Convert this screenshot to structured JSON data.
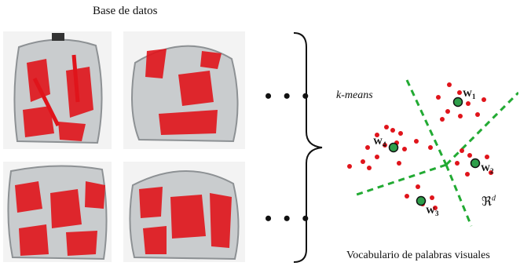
{
  "title": "Base de datos",
  "ellipsis_top": "• • •",
  "ellipsis_bottom": "• • •",
  "method_label": "k-means",
  "space_label": "ℜ^d",
  "caption": "Vocabulario de palabras visuales",
  "centroids": [
    {
      "label": "w1",
      "name": "W",
      "sub": "1"
    },
    {
      "label": "w2",
      "name": "W",
      "sub": "2"
    },
    {
      "label": "w3",
      "name": "W",
      "sub": "3"
    },
    {
      "label": "w4",
      "name": "W",
      "sub": "4"
    }
  ],
  "colors": {
    "feature_point": "#e0141b",
    "centroid_fill": "#2e9e4a",
    "separator": "#22aa33",
    "bag": "#b9bdc0"
  }
}
